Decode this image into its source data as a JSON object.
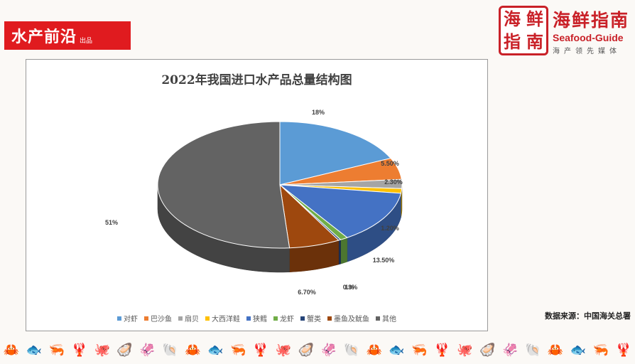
{
  "header": {
    "left_brand": "水产前沿",
    "left_brand_sub": "出品",
    "logo_chars": [
      "海",
      "鲜",
      "指",
      "南"
    ],
    "right_brand": "海鲜指南",
    "right_brand_en": "Seafood-Guide",
    "right_tagline": "海产领先媒体"
  },
  "chart_data": {
    "type": "pie",
    "title": "2022年我国进口水产品总量结构图",
    "slices": [
      {
        "label": "对虾",
        "value": 18,
        "display": "18%",
        "color": "#5b9bd5"
      },
      {
        "label": "巴沙鱼",
        "value": 5.5,
        "display": "5.50%",
        "color": "#ed7d31"
      },
      {
        "label": "扇贝",
        "value": 2.3,
        "display": "2.30%",
        "color": "#a5a5a5"
      },
      {
        "label": "大西洋鲑",
        "value": 1.2,
        "display": "1.20%",
        "color": "#ffc000"
      },
      {
        "label": "狭鳕",
        "value": 13.5,
        "display": "13.50%",
        "color": "#4472c4"
      },
      {
        "label": "龙虾",
        "value": 1,
        "display": "1%",
        "color": "#70ad47"
      },
      {
        "label": "蟹类",
        "value": 0.3,
        "display": "0.3%",
        "color": "#264478"
      },
      {
        "label": "墨鱼及鱿鱼",
        "value": 6.7,
        "display": "6.70%",
        "color": "#9e480e"
      },
      {
        "label": "其他",
        "value": 51,
        "display": "51%",
        "color": "#636363"
      }
    ],
    "legend_position": "bottom"
  },
  "source": "数据来源：中国海关总署",
  "footer_icons": [
    "🦀",
    "🐟",
    "🦐",
    "🦞",
    "🐙",
    "🦪",
    "🦑",
    "🐚",
    "🦀",
    "🐟",
    "🦐",
    "🦞",
    "🐙",
    "🦪",
    "🦑",
    "🐚",
    "🦀",
    "🐟",
    "🦐",
    "🦞",
    "🐙",
    "🦪",
    "🦑",
    "🐚",
    "🦀",
    "🐟",
    "🦐",
    "🦞"
  ]
}
